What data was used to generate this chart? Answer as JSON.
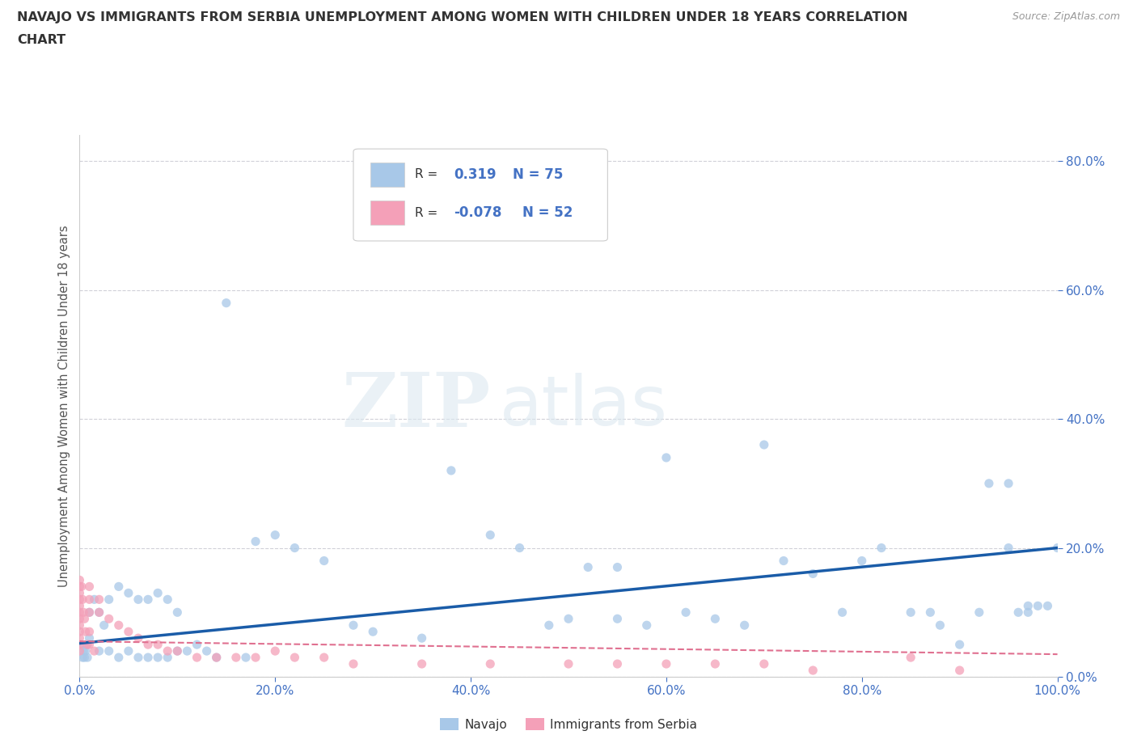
{
  "title_line1": "NAVAJO VS IMMIGRANTS FROM SERBIA UNEMPLOYMENT AMONG WOMEN WITH CHILDREN UNDER 18 YEARS CORRELATION",
  "title_line2": "CHART",
  "source": "Source: ZipAtlas.com",
  "ylabel": "Unemployment Among Women with Children Under 18 years",
  "navajo_R": "0.319",
  "navajo_N": "75",
  "serbia_R": "-0.078",
  "serbia_N": "52",
  "navajo_color": "#a8c8e8",
  "serbia_color": "#f4a0b8",
  "navajo_line_color": "#1a5ca8",
  "serbia_line_color": "#e07090",
  "watermark_zip": "ZIP",
  "watermark_atlas": "atlas",
  "background_color": "#ffffff",
  "tick_color": "#4472c4",
  "title_color": "#333333",
  "ylabel_color": "#555555",
  "grid_color": "#d0d0d8",
  "legend_edge_color": "#cccccc",
  "source_color": "#999999",
  "navajo_x": [
    0.002,
    0.003,
    0.004,
    0.005,
    0.006,
    0.007,
    0.008,
    0.01,
    0.01,
    0.015,
    0.02,
    0.02,
    0.025,
    0.03,
    0.03,
    0.04,
    0.04,
    0.05,
    0.05,
    0.06,
    0.06,
    0.07,
    0.07,
    0.08,
    0.08,
    0.09,
    0.09,
    0.1,
    0.1,
    0.11,
    0.12,
    0.13,
    0.14,
    0.15,
    0.17,
    0.18,
    0.2,
    0.22,
    0.25,
    0.28,
    0.3,
    0.35,
    0.38,
    0.42,
    0.45,
    0.48,
    0.5,
    0.52,
    0.55,
    0.55,
    0.58,
    0.6,
    0.62,
    0.65,
    0.68,
    0.7,
    0.72,
    0.75,
    0.78,
    0.8,
    0.82,
    0.85,
    0.87,
    0.88,
    0.9,
    0.92,
    0.93,
    0.95,
    0.95,
    0.96,
    0.97,
    0.97,
    0.98,
    0.99,
    1.0
  ],
  "navajo_y": [
    0.05,
    0.03,
    0.04,
    0.03,
    0.04,
    0.05,
    0.03,
    0.1,
    0.06,
    0.12,
    0.1,
    0.04,
    0.08,
    0.12,
    0.04,
    0.14,
    0.03,
    0.13,
    0.04,
    0.12,
    0.03,
    0.12,
    0.03,
    0.13,
    0.03,
    0.12,
    0.03,
    0.1,
    0.04,
    0.04,
    0.05,
    0.04,
    0.03,
    0.58,
    0.03,
    0.21,
    0.22,
    0.2,
    0.18,
    0.08,
    0.07,
    0.06,
    0.32,
    0.22,
    0.2,
    0.08,
    0.09,
    0.17,
    0.17,
    0.09,
    0.08,
    0.34,
    0.1,
    0.09,
    0.08,
    0.36,
    0.18,
    0.16,
    0.1,
    0.18,
    0.2,
    0.1,
    0.1,
    0.08,
    0.05,
    0.1,
    0.3,
    0.3,
    0.2,
    0.1,
    0.11,
    0.1,
    0.11,
    0.11,
    0.2
  ],
  "serbia_x": [
    0.0,
    0.0,
    0.0,
    0.0,
    0.0,
    0.0,
    0.0,
    0.0,
    0.0,
    0.0,
    0.0,
    0.0,
    0.002,
    0.003,
    0.004,
    0.005,
    0.006,
    0.008,
    0.01,
    0.01,
    0.01,
    0.01,
    0.01,
    0.015,
    0.02,
    0.02,
    0.03,
    0.04,
    0.05,
    0.06,
    0.07,
    0.08,
    0.09,
    0.1,
    0.12,
    0.14,
    0.16,
    0.18,
    0.2,
    0.22,
    0.25,
    0.28,
    0.35,
    0.42,
    0.5,
    0.55,
    0.6,
    0.65,
    0.7,
    0.75,
    0.85,
    0.9
  ],
  "serbia_y": [
    0.15,
    0.14,
    0.13,
    0.12,
    0.11,
    0.1,
    0.09,
    0.08,
    0.07,
    0.06,
    0.05,
    0.04,
    0.14,
    0.12,
    0.1,
    0.09,
    0.07,
    0.05,
    0.14,
    0.12,
    0.1,
    0.07,
    0.05,
    0.04,
    0.12,
    0.1,
    0.09,
    0.08,
    0.07,
    0.06,
    0.05,
    0.05,
    0.04,
    0.04,
    0.03,
    0.03,
    0.03,
    0.03,
    0.04,
    0.03,
    0.03,
    0.02,
    0.02,
    0.02,
    0.02,
    0.02,
    0.02,
    0.02,
    0.02,
    0.01,
    0.03,
    0.01
  ],
  "xlim": [
    0.0,
    1.0
  ],
  "ylim": [
    0.0,
    0.84
  ],
  "x_ticks": [
    0.0,
    0.2,
    0.4,
    0.6,
    0.8,
    1.0
  ],
  "y_ticks": [
    0.0,
    0.2,
    0.4,
    0.6,
    0.8
  ],
  "scatter_size": 65,
  "scatter_alpha": 0.75
}
